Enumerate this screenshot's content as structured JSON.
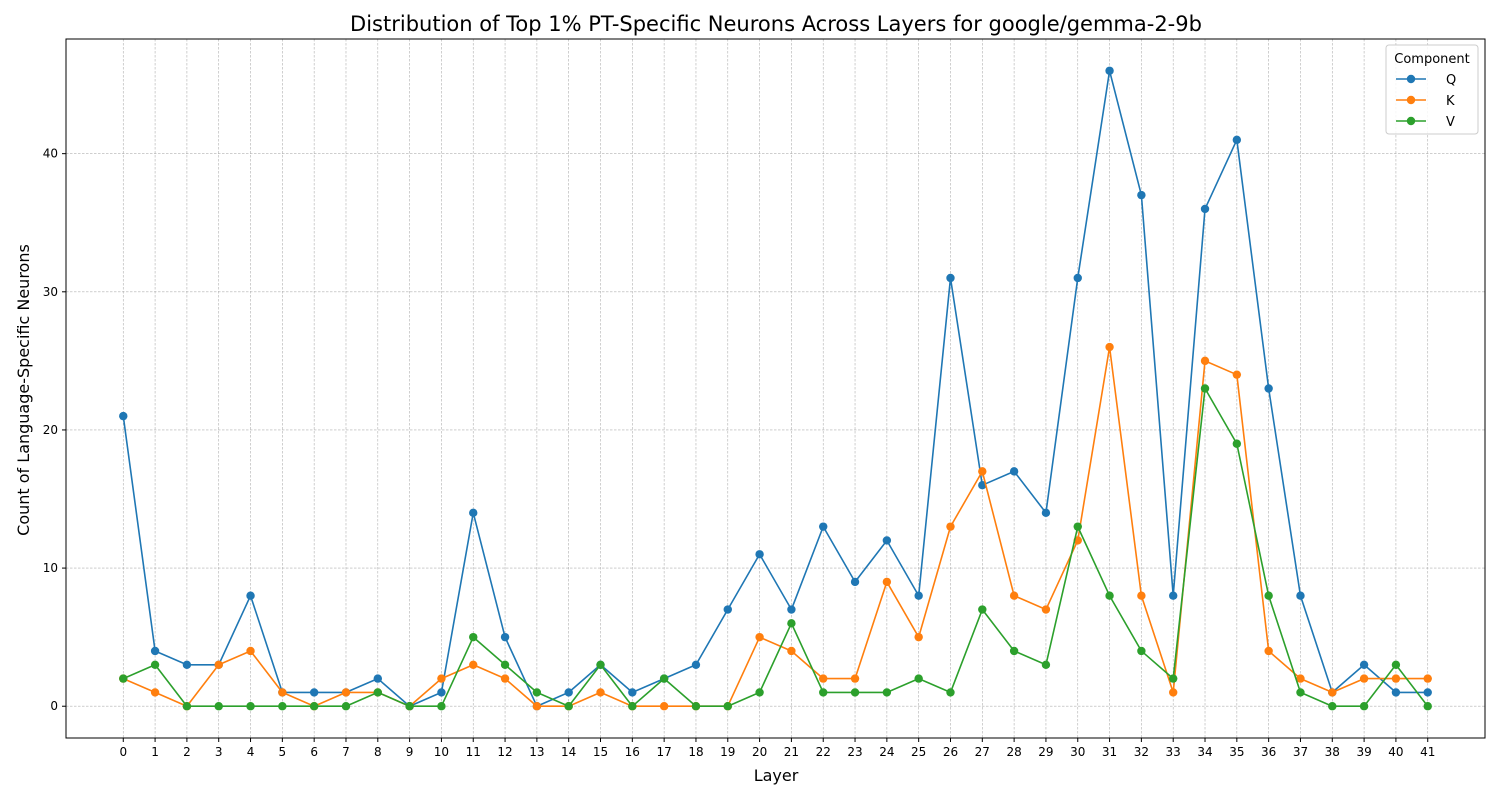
{
  "chart_data": {
    "type": "line",
    "title": "Distribution of Top 1% PT-Specific Neurons Across Layers for google/gemma-2-9b",
    "xlabel": "Layer",
    "ylabel": "Count of Language-Specific Neurons",
    "x": [
      0,
      1,
      2,
      3,
      4,
      5,
      6,
      7,
      8,
      9,
      10,
      11,
      12,
      13,
      14,
      15,
      16,
      17,
      18,
      19,
      20,
      21,
      22,
      23,
      24,
      25,
      26,
      27,
      28,
      29,
      30,
      31,
      32,
      33,
      34,
      35,
      36,
      37,
      38,
      39,
      40,
      41
    ],
    "xlim": [
      -1.8,
      42.8
    ],
    "ylim": [
      -2.3,
      48.3
    ],
    "yticks": [
      0,
      10,
      20,
      30,
      40
    ],
    "grid": true,
    "legend": {
      "title": "Component",
      "placement": "top-right"
    },
    "series": [
      {
        "name": "Q",
        "color": "#1f77b4",
        "values": [
          21,
          4,
          3,
          3,
          8,
          1,
          1,
          1,
          2,
          0,
          1,
          14,
          5,
          0,
          1,
          3,
          1,
          2,
          3,
          7,
          11,
          7,
          13,
          9,
          12,
          8,
          31,
          16,
          17,
          14,
          31,
          46,
          37,
          8,
          36,
          41,
          23,
          8,
          1,
          3,
          1,
          1
        ]
      },
      {
        "name": "K",
        "color": "#ff7f0e",
        "values": [
          2,
          1,
          0,
          3,
          4,
          1,
          0,
          1,
          1,
          0,
          2,
          3,
          2,
          0,
          0,
          1,
          0,
          0,
          0,
          0,
          5,
          4,
          2,
          2,
          9,
          5,
          13,
          17,
          8,
          7,
          12,
          26,
          8,
          1,
          25,
          24,
          4,
          2,
          1,
          2,
          2,
          2
        ]
      },
      {
        "name": "V",
        "color": "#2ca02c",
        "values": [
          2,
          3,
          0,
          0,
          0,
          0,
          0,
          0,
          1,
          0,
          0,
          5,
          3,
          1,
          0,
          3,
          0,
          2,
          0,
          0,
          1,
          6,
          1,
          1,
          1,
          2,
          1,
          7,
          4,
          3,
          13,
          8,
          4,
          2,
          23,
          19,
          8,
          1,
          0,
          0,
          3,
          0
        ]
      }
    ]
  }
}
